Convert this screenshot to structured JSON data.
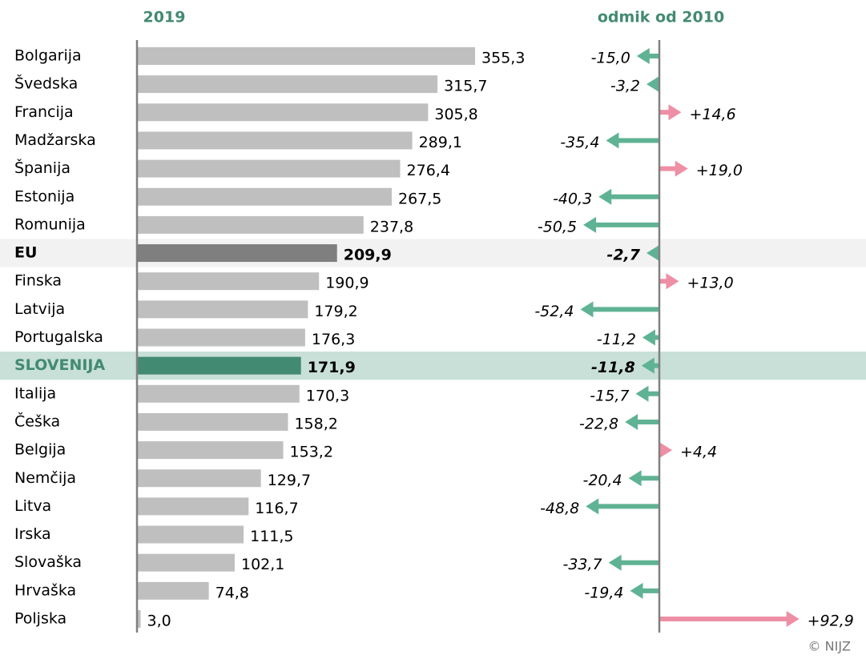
{
  "chart_data": [
    {
      "type": "bar",
      "title": "2019",
      "categories": [
        "Bolgarija",
        "Švedska",
        "Francija",
        "Madžarska",
        "Španija",
        "Estonija",
        "Romunija",
        "EU",
        "Finska",
        "Latvija",
        "Portugalska",
        "SLOVENIJA",
        "Italija",
        "Češka",
        "Belgija",
        "Nemčija",
        "Litva",
        "Irska",
        "Slovaška",
        "Hrvaška",
        "Poljska"
      ],
      "values": [
        355.3,
        315.7,
        305.8,
        289.1,
        276.4,
        267.5,
        237.8,
        209.9,
        190.9,
        179.2,
        176.3,
        171.9,
        170.3,
        158.2,
        153.2,
        129.7,
        116.7,
        111.5,
        102.1,
        74.8,
        3.0
      ],
      "value_labels": [
        "355,3",
        "315,7",
        "305,8",
        "289,1",
        "276,4",
        "267,5",
        "237,8",
        "209,9",
        "190,9",
        "179,2",
        "176,3",
        "171,9",
        "170,3",
        "158,2",
        "153,2",
        "129,7",
        "116,7",
        "111,5",
        "102,1",
        "74,8",
        "3,0"
      ],
      "color": "#bfbfbf",
      "colors": [
        null,
        null,
        null,
        null,
        null,
        null,
        null,
        "#7f7f7f",
        null,
        null,
        null,
        "#438a72",
        null,
        null,
        null,
        null,
        null,
        null,
        null,
        null,
        null
      ],
      "row_colors": [
        null,
        null,
        null,
        null,
        null,
        null,
        null,
        "#f2f2f2",
        null,
        null,
        null,
        "#c8e0d7",
        null,
        null,
        null,
        null,
        null,
        null,
        null,
        null,
        null
      ],
      "label_colors": [
        null,
        null,
        null,
        null,
        null,
        null,
        null,
        "#000000",
        null,
        null,
        null,
        "#438a72",
        null,
        null,
        null,
        null,
        null,
        null,
        null,
        null,
        null
      ]
    },
    {
      "type": "arrow",
      "title": "odmik od 2010",
      "values": [
        -15.0,
        -3.2,
        14.6,
        -35.4,
        19.0,
        -40.3,
        -50.5,
        -2.7,
        13.0,
        -52.4,
        -11.2,
        -11.8,
        -15.7,
        -22.8,
        4.4,
        -20.4,
        -48.8,
        null,
        -33.7,
        -19.4,
        92.9
      ],
      "value_labels": [
        "-15,0",
        "-3,2",
        "+14,6",
        "-35,4",
        "+19,0",
        "-40,3",
        "-50,5",
        "-2,7",
        "+13,0",
        "-52,4",
        "-11,2",
        "-11,8",
        "-15,7",
        "-22,8",
        "+4,4",
        "-20,4",
        "-48,8",
        null,
        "-33,7",
        "-19,4",
        "+92,9"
      ],
      "negative_color": "#5fb394",
      "positive_color": "#ee8fa5"
    }
  ],
  "source": "© NIJZ"
}
